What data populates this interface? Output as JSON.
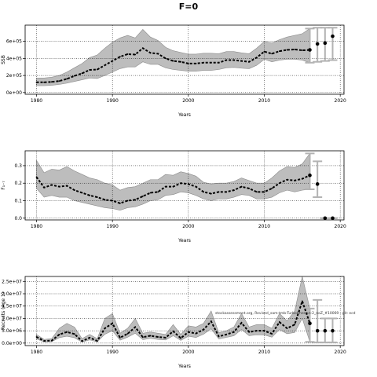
{
  "title": "F=0",
  "watermark": "stockassessment.org, Revised_sam-tmb-Turbot-her-an-2_noZ_#10069 , git: ecd",
  "colors": {
    "line": "#000000",
    "band": "#bdbdbd",
    "band_edge": "#8c8c8c",
    "proj_bar": "#b3b3b3",
    "grid": "#000000"
  },
  "chart_data": [
    {
      "id": "ssb",
      "type": "line",
      "title": "",
      "xlabel": "Years",
      "ylabel": "SSB",
      "xlim": [
        1978.5,
        2020.5
      ],
      "ylim": [
        -20000,
        790000
      ],
      "xticks": [
        1980,
        1990,
        2000,
        2010,
        2020
      ],
      "yticks": [
        0,
        200000,
        400000,
        600000
      ],
      "ytick_labels": [
        "0e+00",
        "2e+05",
        "4e+05",
        "6e+05"
      ],
      "grid": true,
      "x": [
        1980,
        1981,
        1982,
        1983,
        1984,
        1985,
        1986,
        1987,
        1988,
        1989,
        1990,
        1991,
        1992,
        1993,
        1994,
        1995,
        1996,
        1997,
        1998,
        1999,
        2000,
        2001,
        2002,
        2003,
        2004,
        2005,
        2006,
        2007,
        2008,
        2009,
        2010,
        2011,
        2012,
        2013,
        2014,
        2015,
        2016
      ],
      "estimate": [
        120000,
        120000,
        125000,
        135000,
        160000,
        195000,
        225000,
        265000,
        270000,
        320000,
        370000,
        420000,
        450000,
        445000,
        520000,
        465000,
        455000,
        400000,
        370000,
        360000,
        340000,
        340000,
        350000,
        350000,
        350000,
        380000,
        380000,
        370000,
        360000,
        410000,
        480000,
        455000,
        485000,
        500000,
        505000,
        495000,
        500000
      ],
      "upper": [
        170000,
        170000,
        180000,
        200000,
        240000,
        290000,
        340000,
        410000,
        440000,
        520000,
        590000,
        640000,
        670000,
        640000,
        740000,
        650000,
        610000,
        530000,
        490000,
        470000,
        450000,
        450000,
        460000,
        460000,
        455000,
        480000,
        480000,
        465000,
        455000,
        520000,
        600000,
        580000,
        620000,
        650000,
        670000,
        690000,
        750000
      ],
      "lower": [
        80000,
        80000,
        85000,
        95000,
        110000,
        130000,
        150000,
        170000,
        165000,
        200000,
        240000,
        280000,
        300000,
        300000,
        360000,
        330000,
        330000,
        290000,
        270000,
        260000,
        250000,
        250000,
        260000,
        260000,
        270000,
        290000,
        295000,
        285000,
        280000,
        320000,
        390000,
        360000,
        380000,
        390000,
        390000,
        380000,
        350000
      ],
      "projection": {
        "x": [
          2016,
          2017,
          2018,
          2019
        ],
        "estimate": [
          500000,
          570000,
          580000,
          660000
        ],
        "upper": [
          750000,
          760000,
          760000,
          760000
        ],
        "lower": [
          350000,
          360000,
          370000,
          380000
        ]
      }
    },
    {
      "id": "fbar",
      "type": "line",
      "title": "",
      "xlabel": "Years",
      "ylabel": "F₁₋₇",
      "xlim": [
        1978.5,
        2020.5
      ],
      "ylim": [
        -0.01,
        0.385
      ],
      "xticks": [
        1980,
        1990,
        2000,
        2010,
        2020
      ],
      "yticks": [
        0.0,
        0.1,
        0.2,
        0.3
      ],
      "ytick_labels": [
        "0.0",
        "0.1",
        "0.2",
        "0.3"
      ],
      "grid": true,
      "x": [
        1980,
        1981,
        1982,
        1983,
        1984,
        1985,
        1986,
        1987,
        1988,
        1989,
        1990,
        1991,
        1992,
        1993,
        1994,
        1995,
        1996,
        1997,
        1998,
        1999,
        2000,
        2001,
        2002,
        2003,
        2004,
        2005,
        2006,
        2007,
        2008,
        2009,
        2010,
        2011,
        2012,
        2013,
        2014,
        2015,
        2016
      ],
      "estimate": [
        0.235,
        0.175,
        0.19,
        0.18,
        0.185,
        0.16,
        0.145,
        0.13,
        0.12,
        0.105,
        0.1,
        0.085,
        0.1,
        0.105,
        0.125,
        0.145,
        0.15,
        0.18,
        0.18,
        0.2,
        0.195,
        0.18,
        0.15,
        0.14,
        0.15,
        0.15,
        0.16,
        0.18,
        0.17,
        0.15,
        0.15,
        0.17,
        0.2,
        0.22,
        0.215,
        0.225,
        0.245
      ],
      "upper": [
        0.33,
        0.26,
        0.28,
        0.275,
        0.295,
        0.27,
        0.25,
        0.23,
        0.22,
        0.2,
        0.19,
        0.16,
        0.175,
        0.18,
        0.2,
        0.22,
        0.22,
        0.25,
        0.245,
        0.265,
        0.255,
        0.24,
        0.205,
        0.195,
        0.2,
        0.2,
        0.21,
        0.23,
        0.215,
        0.2,
        0.2,
        0.23,
        0.27,
        0.295,
        0.29,
        0.31,
        0.37
      ],
      "lower": [
        0.17,
        0.12,
        0.13,
        0.12,
        0.12,
        0.1,
        0.09,
        0.08,
        0.07,
        0.06,
        0.055,
        0.045,
        0.06,
        0.065,
        0.08,
        0.1,
        0.105,
        0.13,
        0.135,
        0.15,
        0.145,
        0.13,
        0.11,
        0.1,
        0.11,
        0.11,
        0.12,
        0.135,
        0.13,
        0.11,
        0.11,
        0.12,
        0.145,
        0.16,
        0.15,
        0.16,
        0.165
      ],
      "projection": {
        "x": [
          2016,
          2017,
          2018,
          2019
        ],
        "estimate": [
          0.245,
          0.195,
          0.0,
          0.0
        ],
        "upper": [
          0.37,
          0.325,
          0.0,
          0.0
        ],
        "lower": [
          0.165,
          0.12,
          0.0,
          0.0
        ]
      }
    },
    {
      "id": "recruits",
      "type": "line",
      "title": "",
      "xlabel": "Years",
      "ylabel": "Recruits (Age 1)",
      "xlim": [
        1978.5,
        2020.5
      ],
      "ylim": [
        -1000000,
        27000000
      ],
      "xticks": [
        1980,
        1990,
        2000,
        2010,
        2020
      ],
      "yticks": [
        0,
        5000000,
        10000000,
        15000000,
        20000000,
        25000000
      ],
      "ytick_labels": [
        "0.0e+00",
        "5.0e+06",
        "1.0e+07",
        "1.5e+07",
        "2.0e+07",
        "2.5e+07"
      ],
      "grid": true,
      "x": [
        1980,
        1981,
        1982,
        1983,
        1984,
        1985,
        1986,
        1987,
        1988,
        1989,
        1990,
        1991,
        1992,
        1993,
        1994,
        1995,
        1996,
        1997,
        1998,
        1999,
        2000,
        2001,
        2002,
        2003,
        2004,
        2005,
        2006,
        2007,
        2008,
        2009,
        2010,
        2011,
        2012,
        2013,
        2014,
        2015,
        2016
      ],
      "estimate": [
        2500000,
        900000,
        1000000,
        3500000,
        4500000,
        3700000,
        800000,
        2200000,
        900000,
        6000000,
        8000000,
        2200000,
        3800000,
        6500000,
        2400000,
        3000000,
        2500000,
        2200000,
        4800000,
        2000000,
        4500000,
        3900000,
        5500000,
        8800000,
        2700000,
        3500000,
        4500000,
        8200000,
        4500000,
        5000000,
        5000000,
        3800000,
        8500000,
        6000000,
        7500000,
        17000000,
        8000000
      ],
      "upper": [
        3500000,
        1500000,
        1800000,
        6000000,
        8000000,
        6500000,
        1800000,
        3500000,
        1800000,
        10000000,
        12000000,
        4000000,
        6000000,
        10000000,
        4000000,
        4500000,
        4000000,
        3500000,
        7500000,
        3500000,
        7000000,
        6500000,
        8000000,
        13000000,
        4200000,
        5000000,
        6500000,
        12000000,
        6500000,
        7500000,
        7500000,
        6000000,
        12000000,
        9000000,
        13000000,
        27000000,
        14000000
      ],
      "lower": [
        1700000,
        500000,
        600000,
        2200000,
        2800000,
        2200000,
        400000,
        1300000,
        500000,
        3600000,
        5000000,
        1200000,
        2400000,
        4000000,
        1400000,
        1900000,
        1500000,
        1300000,
        3000000,
        1100000,
        2800000,
        2300000,
        3600000,
        5800000,
        1700000,
        2300000,
        3000000,
        5500000,
        3000000,
        3400000,
        3300000,
        2400000,
        5500000,
        3800000,
        4300000,
        10000000,
        500000
      ],
      "projection": {
        "x": [
          2016,
          2017,
          2018,
          2019
        ],
        "estimate": [
          8000000,
          5000000,
          5000000,
          5000000
        ],
        "upper": [
          14000000,
          17500000,
          10000000,
          10000000
        ],
        "lower": [
          500000,
          300000,
          300000,
          300000
        ]
      }
    }
  ]
}
